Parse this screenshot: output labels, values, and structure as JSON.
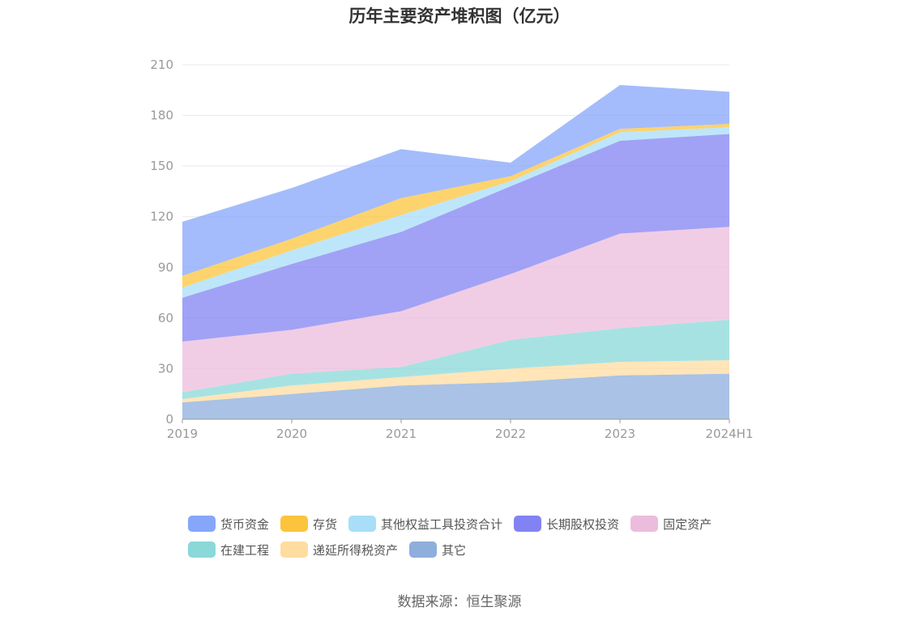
{
  "chart_data": {
    "type": "area",
    "stacked": true,
    "title": "历年主要资产堆积图（亿元）",
    "x": [
      "2019",
      "2020",
      "2021",
      "2022",
      "2023",
      "2024H1"
    ],
    "yticks": [
      "0",
      "30",
      "60",
      "90",
      "120",
      "150",
      "180",
      "210"
    ],
    "ylim": [
      0,
      210
    ],
    "series": [
      {
        "name": "其它",
        "color": "#8eaedc",
        "values": [
          10,
          15,
          20,
          22,
          26,
          27
        ]
      },
      {
        "name": "递延所得税资产",
        "color": "#ffdca0",
        "values": [
          2,
          5,
          5,
          8,
          8,
          8
        ]
      },
      {
        "name": "在建工程",
        "color": "#8ad8d8",
        "values": [
          4,
          7,
          6,
          17,
          20,
          24
        ]
      },
      {
        "name": "固定资产",
        "color": "#ecbcdc",
        "values": [
          30,
          26,
          33,
          39,
          56,
          55
        ]
      },
      {
        "name": "长期股权投资",
        "color": "#8283f2",
        "values": [
          26,
          39,
          47,
          52,
          55,
          55
        ]
      },
      {
        "name": "其他权益工具投资合计",
        "color": "#a8def8",
        "values": [
          6,
          8,
          10,
          3,
          5,
          4
        ]
      },
      {
        "name": "存货",
        "color": "#fcc43c",
        "values": [
          7,
          7,
          10,
          3,
          2,
          2
        ]
      },
      {
        "name": "货币资金",
        "color": "#86a6fa",
        "values": [
          32,
          30,
          29,
          8,
          26,
          19
        ]
      }
    ],
    "legend": {
      "row1": [
        "货币资金",
        "存货",
        "其他权益工具投资合计",
        "长期股权投资",
        "固定资产"
      ],
      "row2": [
        "在建工程",
        "递延所得税资产",
        "其它"
      ]
    },
    "source": "数据来源：恒生聚源"
  }
}
